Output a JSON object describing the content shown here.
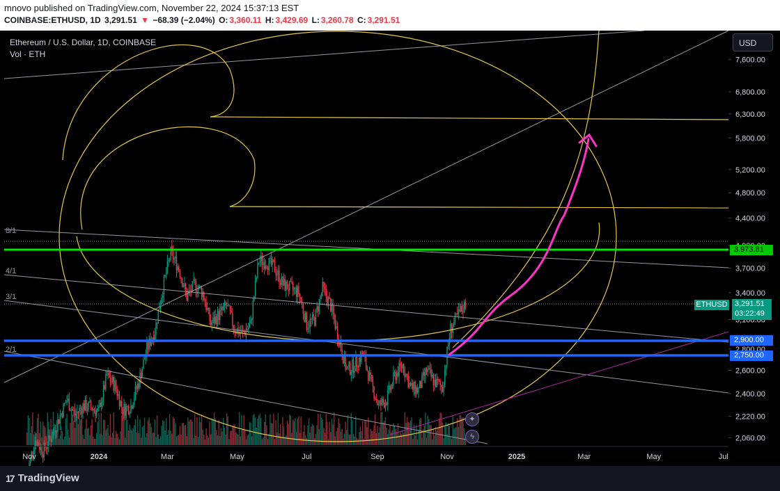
{
  "header": {
    "published": "mnovo published on TradingView.com, November 22, 2024 15:37:13 EST",
    "symbol": "COINBASE:ETHUSD, 1D",
    "last": "3,291.51",
    "arrow": "▼",
    "change": "−68.39 (−2.04%)",
    "o_label": "O:",
    "o_val": "3,360.11",
    "h_label": "H:",
    "h_val": "3,429.69",
    "l_label": "L:",
    "l_val": "3,260.78",
    "c_label": "C:",
    "c_val": "3,291.51"
  },
  "legend": {
    "title": "Ethereum / U.S. Dollar, 1D, COINBASE",
    "volume": "Vol · ETH"
  },
  "currency_button": "USD",
  "symbol_tag": "ETHUSD",
  "price_tag": {
    "price": "3,291.51",
    "countdown": "03:22:49"
  },
  "brand": "TradingView",
  "colors": {
    "up": "#089981",
    "down": "#f23645",
    "green_level": "#00e600",
    "blue_level": "#1e66ff",
    "fib": "#f2d43a",
    "arrow": "#ff33cc"
  },
  "chart_data": {
    "type": "candlestick",
    "symbol": "COINBASE:ETHUSD",
    "interval": "1D",
    "x_ticks": [
      "Nov",
      "2024",
      "Mar",
      "May",
      "Jul",
      "Sep",
      "Nov",
      "2025",
      "Mar",
      "May",
      "Jul"
    ],
    "y_ticks": [
      2060,
      2220,
      2400,
      2600,
      2800,
      3100,
      3400,
      3700,
      4000,
      4400,
      4800,
      5200,
      5800,
      6300,
      6800,
      7600
    ],
    "y_tick_labels": [
      "2,060.00",
      "2,220.00",
      "2,400.00",
      "2,600.00",
      "2,800.00",
      "3,100.00",
      "3,400.00",
      "3,700.00",
      "4,000.00",
      "4,400.00",
      "4,800.00",
      "5,200.00",
      "5,800.00",
      "6,300.00",
      "6,800.00",
      "7,600.00"
    ],
    "y_scale": "log",
    "ylim": [
      2000,
      8400
    ],
    "last_price": 3291.51,
    "ohlc_last": {
      "open": 3360.11,
      "high": 3429.69,
      "low": 3260.78,
      "close": 3291.51
    },
    "horizontal_levels": [
      {
        "price": 3973.81,
        "label": "3,973.81",
        "color": "green"
      },
      {
        "price": 2900,
        "label": "2,900.00",
        "color": "blue"
      },
      {
        "price": 2750,
        "label": "2,750.00",
        "color": "blue"
      }
    ],
    "gann_fan_labels": [
      "8/1",
      "4/1",
      "3/1",
      "2/1"
    ],
    "weekly_closes": [
      {
        "date": "2023-10-30",
        "close": 1810
      },
      {
        "date": "2023-11-06",
        "close": 2050
      },
      {
        "date": "2023-11-13",
        "close": 1970
      },
      {
        "date": "2023-11-20",
        "close": 2060
      },
      {
        "date": "2023-11-27",
        "close": 2200
      },
      {
        "date": "2023-12-04",
        "close": 2350
      },
      {
        "date": "2023-12-11",
        "close": 2230
      },
      {
        "date": "2023-12-18",
        "close": 2300
      },
      {
        "date": "2023-12-25",
        "close": 2290
      },
      {
        "date": "2024-01-01",
        "close": 2250
      },
      {
        "date": "2024-01-08",
        "close": 2550
      },
      {
        "date": "2024-01-15",
        "close": 2470
      },
      {
        "date": "2024-01-22",
        "close": 2270
      },
      {
        "date": "2024-01-29",
        "close": 2300
      },
      {
        "date": "2024-02-05",
        "close": 2500
      },
      {
        "date": "2024-02-12",
        "close": 2800
      },
      {
        "date": "2024-02-19",
        "close": 2980
      },
      {
        "date": "2024-02-26",
        "close": 3450
      },
      {
        "date": "2024-03-04",
        "close": 3900
      },
      {
        "date": "2024-03-11",
        "close": 3700
      },
      {
        "date": "2024-03-18",
        "close": 3350
      },
      {
        "date": "2024-03-25",
        "close": 3500
      },
      {
        "date": "2024-04-01",
        "close": 3400
      },
      {
        "date": "2024-04-08",
        "close": 3050
      },
      {
        "date": "2024-04-15",
        "close": 3150
      },
      {
        "date": "2024-04-22",
        "close": 3250
      },
      {
        "date": "2024-04-29",
        "close": 3000
      },
      {
        "date": "2024-05-06",
        "close": 2950
      },
      {
        "date": "2024-05-13",
        "close": 3050
      },
      {
        "date": "2024-05-20",
        "close": 3800
      },
      {
        "date": "2024-05-27",
        "close": 3780
      },
      {
        "date": "2024-06-03",
        "close": 3700
      },
      {
        "date": "2024-06-10",
        "close": 3500
      },
      {
        "date": "2024-06-17",
        "close": 3450
      },
      {
        "date": "2024-06-24",
        "close": 3400
      },
      {
        "date": "2024-07-01",
        "close": 3050
      },
      {
        "date": "2024-07-08",
        "close": 3100
      },
      {
        "date": "2024-07-15",
        "close": 3450
      },
      {
        "date": "2024-07-22",
        "close": 3250
      },
      {
        "date": "2024-07-29",
        "close": 2900
      },
      {
        "date": "2024-08-05",
        "close": 2600
      },
      {
        "date": "2024-08-12",
        "close": 2650
      },
      {
        "date": "2024-08-19",
        "close": 2750
      },
      {
        "date": "2024-08-26",
        "close": 2500
      },
      {
        "date": "2024-09-02",
        "close": 2300
      },
      {
        "date": "2024-09-09",
        "close": 2350
      },
      {
        "date": "2024-09-16",
        "close": 2550
      },
      {
        "date": "2024-09-23",
        "close": 2650
      },
      {
        "date": "2024-09-30",
        "close": 2450
      },
      {
        "date": "2024-10-07",
        "close": 2430
      },
      {
        "date": "2024-10-14",
        "close": 2600
      },
      {
        "date": "2024-10-21",
        "close": 2500
      },
      {
        "date": "2024-10-28",
        "close": 2450
      },
      {
        "date": "2024-11-04",
        "close": 3000
      },
      {
        "date": "2024-11-11",
        "close": 3150
      },
      {
        "date": "2024-11-18",
        "close": 3291.51
      }
    ]
  }
}
